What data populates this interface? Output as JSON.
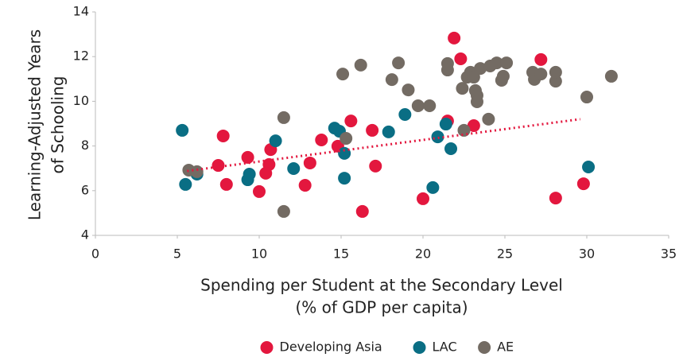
{
  "chart_data": {
    "type": "scatter",
    "x_label": [
      "Spending per Student at the Secondary Level",
      "(% of GDP per capita)"
    ],
    "y_label": [
      "Learning-Adjusted Years",
      "of Schooling"
    ],
    "xlim": [
      0,
      35
    ],
    "xticks": [
      0,
      5,
      10,
      15,
      20,
      25,
      30,
      35
    ],
    "ylim": [
      4,
      14
    ],
    "yticks": [
      4,
      6,
      8,
      10,
      12,
      14
    ],
    "grid": false,
    "legend": "bottom",
    "series": [
      {
        "name": "Developing Asia",
        "color": "#e3173e",
        "x": [
          7.8,
          7.5,
          8.0,
          9.3,
          10.7,
          10.6,
          10.4,
          10.0,
          12.8,
          13.1,
          13.8,
          14.8,
          15.6,
          16.3,
          17.1,
          16.9,
          20.0,
          21.5,
          21.9,
          22.3,
          23.1,
          27.2,
          28.1,
          29.8
        ],
        "values": [
          8.45,
          7.13,
          6.28,
          7.49,
          7.84,
          7.17,
          6.78,
          5.96,
          6.24,
          7.24,
          8.27,
          7.99,
          9.12,
          5.07,
          7.1,
          8.7,
          5.64,
          9.12,
          12.83,
          11.9,
          8.91,
          11.87,
          5.67,
          6.31
        ]
      },
      {
        "name": "LAC",
        "color": "#0a6e84",
        "x": [
          5.3,
          5.5,
          6.2,
          9.3,
          9.4,
          11.0,
          12.1,
          14.6,
          14.9,
          15.2,
          15.2,
          17.9,
          18.9,
          20.6,
          20.9,
          21.4,
          21.7,
          30.1
        ],
        "values": [
          8.7,
          6.28,
          6.74,
          6.49,
          6.74,
          8.23,
          6.99,
          8.8,
          8.66,
          7.67,
          6.56,
          8.63,
          9.41,
          6.14,
          8.41,
          8.98,
          7.88,
          7.06
        ]
      },
      {
        "name": "AE",
        "color": "#736b63",
        "x": [
          5.7,
          6.2,
          11.5,
          11.5,
          15.1,
          15.3,
          16.2,
          18.1,
          18.5,
          19.1,
          19.7,
          20.4,
          21.5,
          21.5,
          22.4,
          22.5,
          22.7,
          22.9,
          23.1,
          23.2,
          23.3,
          23.3,
          23.5,
          24.0,
          24.1,
          24.5,
          24.8,
          24.9,
          25.1,
          26.7,
          26.8,
          27.2,
          28.1,
          28.1,
          30.0,
          31.5
        ],
        "values": [
          6.92,
          6.85,
          5.07,
          9.27,
          11.22,
          8.34,
          11.62,
          10.97,
          11.72,
          10.51,
          9.8,
          9.8,
          11.69,
          11.4,
          10.58,
          8.7,
          11.08,
          11.3,
          11.08,
          10.48,
          10.26,
          9.98,
          11.47,
          9.2,
          11.58,
          11.72,
          10.94,
          11.12,
          11.72,
          11.3,
          10.98,
          11.22,
          10.9,
          11.3,
          10.19,
          11.12
        ]
      }
    ],
    "trendline": {
      "color": "#e3173e",
      "x": [
        5.6,
        29.6
      ],
      "values": [
        6.88,
        9.2
      ]
    }
  }
}
